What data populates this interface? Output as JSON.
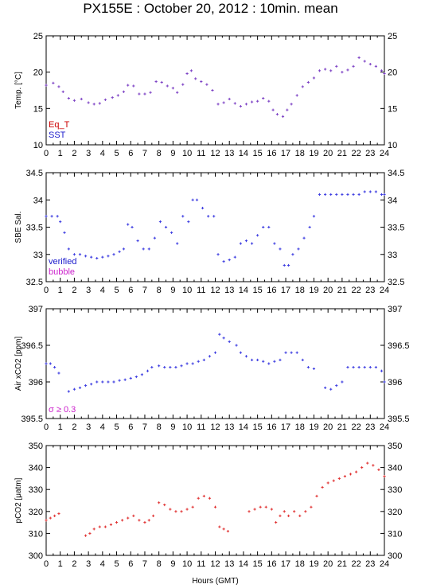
{
  "title": "PX155E : October 20, 2012 : 10min. mean",
  "xlabel": "Hours (GMT)",
  "colors": {
    "axis": "#000000",
    "temperature_points": "#7b3fc4",
    "salinity_points": "#3a3ae0",
    "xco2_points": "#3a3ae0",
    "pco2_points": "#e03030",
    "legend_eq_t": "#cc0000",
    "legend_sst": "#2020cc",
    "legend_verified": "#1a1acc",
    "legend_bubble": "#cc22cc",
    "legend_sigma": "#cc22cc"
  },
  "chart_data": [
    {
      "type": "scatter",
      "id": "temp",
      "ylabel": "Temp. [°C]",
      "xlim": [
        0,
        24
      ],
      "ylim": [
        10,
        25
      ],
      "xticks": [
        0,
        1,
        2,
        3,
        4,
        5,
        6,
        7,
        8,
        9,
        10,
        11,
        12,
        13,
        14,
        15,
        16,
        17,
        18,
        19,
        20,
        21,
        22,
        23,
        24
      ],
      "yticks": [
        10,
        15,
        20,
        25
      ],
      "legend": [
        "Eq_T",
        "SST"
      ],
      "legend_placement": "bottom-left",
      "series": [
        {
          "name": "SST",
          "x": [
            0.0,
            0.5,
            0.9,
            1.2,
            1.6,
            2.0,
            2.5,
            3.0,
            3.4,
            3.8,
            4.2,
            4.7,
            5.1,
            5.5,
            5.8,
            6.2,
            6.6,
            7.0,
            7.4,
            7.8,
            8.2,
            8.6,
            9.0,
            9.3,
            9.7,
            10.0,
            10.3,
            10.6,
            11.0,
            11.4,
            11.8,
            12.2,
            12.6,
            13.0,
            13.4,
            13.8,
            14.2,
            14.6,
            15.0,
            15.4,
            15.8,
            16.1,
            16.4,
            16.8,
            17.1,
            17.4,
            17.8,
            18.2,
            18.6,
            19.0,
            19.4,
            19.8,
            20.2,
            20.6,
            21.0,
            21.4,
            21.8,
            22.2,
            22.6,
            23.0,
            23.4,
            23.8,
            24.0
          ],
          "y": [
            18.2,
            18.5,
            18.0,
            17.3,
            16.4,
            16.1,
            16.3,
            15.8,
            15.6,
            15.7,
            16.2,
            16.5,
            16.8,
            17.3,
            18.2,
            18.1,
            17.0,
            17.0,
            17.2,
            18.7,
            18.6,
            18.1,
            17.8,
            17.2,
            18.3,
            19.8,
            20.2,
            19.1,
            18.7,
            18.3,
            17.5,
            15.6,
            15.8,
            16.3,
            15.7,
            15.3,
            15.6,
            15.9,
            16.0,
            16.4,
            16.0,
            14.8,
            14.2,
            13.9,
            14.8,
            15.6,
            16.8,
            18.0,
            18.6,
            19.2,
            20.2,
            20.4,
            20.2,
            20.8,
            20.0,
            20.3,
            20.8,
            22.0,
            21.5,
            21.1,
            20.8,
            20.2,
            19.8
          ]
        }
      ]
    },
    {
      "type": "scatter",
      "id": "sal",
      "ylabel": "SBE Sal.",
      "xlim": [
        0,
        24
      ],
      "ylim": [
        32.5,
        34.5
      ],
      "xticks": [
        0,
        1,
        2,
        3,
        4,
        5,
        6,
        7,
        8,
        9,
        10,
        11,
        12,
        13,
        14,
        15,
        16,
        17,
        18,
        19,
        20,
        21,
        22,
        23,
        24
      ],
      "yticks": [
        32.5,
        33,
        33.5,
        34,
        34.5
      ],
      "legend": [
        "verified",
        "bubble"
      ],
      "legend_placement": "bottom-left",
      "series": [
        {
          "name": "verified",
          "x": [
            0.0,
            0.4,
            0.8,
            1.0,
            1.3,
            1.6,
            2.0,
            2.4,
            2.8,
            3.2,
            3.6,
            4.0,
            4.4,
            4.8,
            5.2,
            5.5,
            5.8,
            6.1,
            6.5,
            6.9,
            7.3,
            7.7,
            8.1,
            8.5,
            8.9,
            9.3,
            9.7,
            10.1,
            10.4,
            10.7,
            11.1,
            11.5,
            11.9,
            12.2,
            12.6,
            13.0,
            13.4,
            13.8,
            14.2,
            14.6,
            15.0,
            15.4,
            15.8,
            16.2,
            16.6,
            16.9,
            17.2,
            17.5,
            17.9,
            18.3,
            18.7,
            19.0,
            19.4,
            19.8,
            20.2,
            20.6,
            21.0,
            21.4,
            21.8,
            22.2,
            22.6,
            23.0,
            23.4,
            23.8,
            24.0
          ],
          "y": [
            33.7,
            33.7,
            33.7,
            33.6,
            33.4,
            33.1,
            33.0,
            33.0,
            32.97,
            32.95,
            32.93,
            32.95,
            32.97,
            33.0,
            33.05,
            33.1,
            33.55,
            33.5,
            33.25,
            33.1,
            33.1,
            33.3,
            33.6,
            33.5,
            33.4,
            33.2,
            33.7,
            33.6,
            34.0,
            34.0,
            33.85,
            33.7,
            33.7,
            33.0,
            32.87,
            32.9,
            32.95,
            33.2,
            33.25,
            33.2,
            33.35,
            33.5,
            33.5,
            33.2,
            33.1,
            32.8,
            32.8,
            33.0,
            33.1,
            33.3,
            33.5,
            33.7,
            34.1,
            34.1,
            34.1,
            34.1,
            34.1,
            34.1,
            34.1,
            34.1,
            34.15,
            34.15,
            34.15,
            34.1,
            34.1
          ]
        }
      ]
    },
    {
      "type": "scatter",
      "id": "xco2",
      "ylabel": "Air xCO2 [ppm]",
      "xlim": [
        0,
        24
      ],
      "ylim": [
        395.5,
        397
      ],
      "xticks": [
        0,
        1,
        2,
        3,
        4,
        5,
        6,
        7,
        8,
        9,
        10,
        11,
        12,
        13,
        14,
        15,
        16,
        17,
        18,
        19,
        20,
        21,
        22,
        23,
        24
      ],
      "yticks": [
        395.5,
        396,
        396.5,
        397
      ],
      "annotation": "σ ≥ 0.3",
      "series": [
        {
          "name": "Air xCO2",
          "x": [
            0.0,
            0.3,
            0.6,
            0.9,
            1.6,
            2.0,
            2.4,
            2.8,
            3.2,
            3.6,
            4.0,
            4.4,
            4.8,
            5.2,
            5.6,
            6.0,
            6.4,
            6.8,
            7.2,
            7.5,
            8.0,
            8.4,
            8.8,
            9.2,
            9.6,
            10.0,
            10.4,
            10.8,
            11.2,
            11.6,
            12.0,
            12.3,
            12.6,
            13.0,
            13.5,
            13.8,
            14.2,
            14.6,
            15.0,
            15.4,
            15.8,
            16.2,
            16.6,
            17.0,
            17.4,
            17.8,
            18.2,
            18.6,
            19.0,
            19.8,
            20.2,
            20.6,
            21.0,
            21.4,
            21.8,
            22.2,
            22.6,
            23.0,
            23.4,
            23.8,
            24.0
          ],
          "y": [
            396.25,
            396.25,
            396.2,
            396.12,
            395.87,
            395.9,
            395.92,
            395.95,
            395.97,
            396.0,
            396.0,
            396.0,
            396.0,
            396.02,
            396.03,
            396.05,
            396.07,
            396.1,
            396.15,
            396.2,
            396.22,
            396.2,
            396.2,
            396.2,
            396.22,
            396.25,
            396.25,
            396.28,
            396.3,
            396.35,
            396.4,
            396.65,
            396.6,
            396.55,
            396.5,
            396.4,
            396.35,
            396.3,
            396.3,
            396.28,
            396.25,
            396.28,
            396.3,
            396.4,
            396.4,
            396.4,
            396.3,
            396.2,
            396.18,
            395.92,
            395.9,
            395.95,
            396.0,
            396.2,
            396.2,
            396.2,
            396.2,
            396.2,
            396.2,
            396.15,
            396.0
          ]
        }
      ]
    },
    {
      "type": "scatter",
      "id": "pco2",
      "ylabel": "pCO2 [μatm]",
      "xlim": [
        0,
        24
      ],
      "ylim": [
        300,
        350
      ],
      "xticks": [
        0,
        1,
        2,
        3,
        4,
        5,
        6,
        7,
        8,
        9,
        10,
        11,
        12,
        13,
        14,
        15,
        16,
        17,
        18,
        19,
        20,
        21,
        22,
        23,
        24
      ],
      "yticks": [
        300,
        310,
        320,
        330,
        340,
        350
      ],
      "series": [
        {
          "name": "pCO2",
          "x": [
            0.0,
            0.3,
            0.6,
            0.9,
            2.8,
            3.1,
            3.4,
            3.8,
            4.2,
            4.6,
            5.0,
            5.4,
            5.8,
            6.2,
            6.6,
            7.0,
            7.3,
            7.6,
            8.0,
            8.4,
            8.8,
            9.2,
            9.6,
            10.0,
            10.4,
            10.8,
            11.2,
            11.6,
            12.0,
            12.3,
            12.6,
            12.9,
            14.4,
            14.8,
            15.2,
            15.6,
            16.0,
            16.3,
            16.6,
            16.9,
            17.2,
            17.6,
            18.0,
            18.4,
            18.8,
            19.2,
            19.6,
            20.0,
            20.4,
            20.8,
            21.2,
            21.6,
            22.0,
            22.4,
            22.8,
            23.2,
            23.6,
            24.0
          ],
          "y": [
            316,
            317,
            318,
            319,
            309,
            310,
            312,
            313,
            313,
            314,
            315,
            316,
            317,
            318,
            316,
            315,
            316,
            318,
            324,
            323,
            321,
            320,
            320,
            321,
            322,
            326,
            327,
            326,
            322,
            313,
            312,
            311,
            320,
            321,
            322,
            322,
            321,
            315,
            318,
            320,
            318,
            320,
            318,
            320,
            322,
            327,
            331,
            333,
            334,
            335,
            336,
            337,
            338,
            340,
            342,
            341,
            339,
            336
          ]
        }
      ]
    }
  ]
}
